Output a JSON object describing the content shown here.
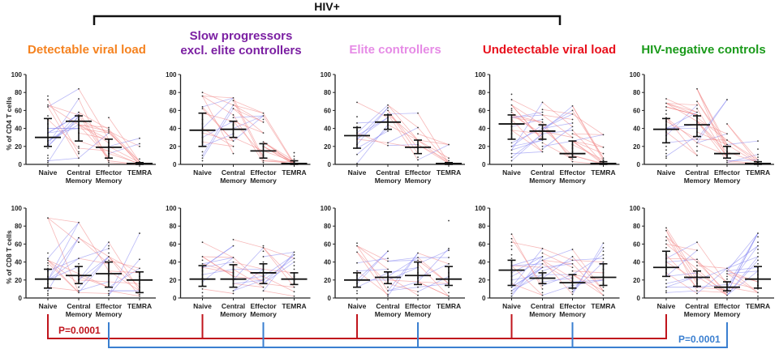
{
  "figure": {
    "bracket_label": "HIV+",
    "group_titles": [
      {
        "lines": [
          "Detectable viral load"
        ],
        "color": "#f5821f"
      },
      {
        "lines": [
          "Slow progressors",
          "excl. elite controllers"
        ],
        "color": "#7b1fa2"
      },
      {
        "lines": [
          "Elite controllers"
        ],
        "color": "#e68be6"
      },
      {
        "lines": [
          "Undetectable viral load"
        ],
        "color": "#e8101c"
      },
      {
        "lines": [
          "HIV-negative controls"
        ],
        "color": "#1a9a1a"
      }
    ],
    "comparisons": [
      {
        "label": "P=0.0001",
        "color": "#c0141c",
        "connects": "Naive across all groups"
      },
      {
        "label": "P=0.0001",
        "color": "#3a7fd0",
        "connects": "Effector Memory across all groups"
      }
    ],
    "line_colors": {
      "decrease": "#f08080",
      "increase": "#8080f0",
      "summary": "#111111",
      "dots": "#333333"
    }
  },
  "chart_data": {
    "type": "scatter",
    "categories": [
      "Naive",
      "Central Memory",
      "Effector Memory",
      "TEMRA"
    ],
    "category_lines": [
      [
        "Naive"
      ],
      [
        "Central",
        "Memory"
      ],
      [
        "Effector",
        "Memory"
      ],
      [
        "TEMRA"
      ]
    ],
    "ylim": [
      0,
      100
    ],
    "yticks": [
      0,
      20,
      40,
      60,
      80,
      100
    ],
    "rows": [
      {
        "ylabel": "% of CD4 T cells",
        "panels": [
          {
            "group": "Detectable viral load",
            "median": [
              30,
              48,
              19,
              1
            ],
            "q1": [
              20,
              26,
              7,
              0
            ],
            "q3": [
              51,
              54,
              28,
              2
            ],
            "points": [
              [
                76,
                72,
                66,
                64,
                54,
                50,
                45,
                40,
                35,
                30,
                26,
                22,
                20,
                18,
                10,
                7,
                4,
                2
              ],
              [
                84,
                73,
                58,
                55,
                53,
                50,
                48,
                44,
                40,
                35,
                26,
                20,
                18,
                14,
                12,
                7
              ],
              [
                52,
                41,
                39,
                37,
                35,
                28,
                24,
                20,
                15,
                12,
                7,
                4,
                2
              ],
              [
                29,
                23,
                20,
                6,
                3,
                2,
                1,
                1,
                0,
                0,
                0,
                0
              ]
            ]
          },
          {
            "group": "Slow progressors excl. elite controllers",
            "median": [
              38,
              39,
              15,
              1
            ],
            "q1": [
              20,
              30,
              7,
              0
            ],
            "q3": [
              57,
              48,
              23,
              4
            ],
            "points": [
              [
                80,
                76,
                64,
                62,
                57,
                50,
                45,
                40,
                35,
                30,
                25,
                20,
                14,
                10,
                7,
                4
              ],
              [
                74,
                71,
                66,
                62,
                55,
                52,
                48,
                44,
                40,
                34,
                30,
                26,
                20,
                12
              ],
              [
                57,
                54,
                50,
                47,
                35,
                25,
                20,
                15,
                10,
                7,
                4,
                2
              ],
              [
                13,
                9,
                6,
                4,
                3,
                2,
                1,
                1,
                0,
                0
              ]
            ]
          },
          {
            "group": "Elite controllers",
            "median": [
              32,
              47,
              19,
              1
            ],
            "q1": [
              18,
              39,
              12,
              0
            ],
            "q3": [
              41,
              55,
              27,
              2
            ],
            "points": [
              [
                69,
                53,
                46,
                42,
                38,
                35,
                32,
                28,
                22,
                18,
                11,
                1
              ],
              [
                66,
                63,
                60,
                56,
                52,
                48,
                44,
                40,
                37,
                24,
                21
              ],
              [
                57,
                41,
                34,
                27,
                22,
                18,
                12,
                8,
                5
              ],
              [
                22,
                7,
                4,
                2,
                1,
                1,
                0,
                0
              ]
            ]
          },
          {
            "group": "Undetectable viral load",
            "median": [
              45,
              37,
              12,
              1
            ],
            "q1": [
              28,
              28,
              8,
              0
            ],
            "q3": [
              55,
              44,
              26,
              3
            ],
            "points": [
              [
                78,
                72,
                66,
                62,
                60,
                58,
                55,
                52,
                50,
                48,
                45,
                42,
                38,
                34,
                30,
                28,
                24,
                20,
                16,
                12,
                8,
                4
              ],
              [
                69,
                61,
                58,
                55,
                50,
                47,
                44,
                40,
                37,
                34,
                30,
                27,
                24,
                20,
                17,
                14
              ],
              [
                65,
                60,
                56,
                50,
                46,
                42,
                38,
                34,
                30,
                26,
                22,
                18,
                14,
                10,
                6,
                3
              ],
              [
                33,
                19,
                12,
                7,
                5,
                4,
                3,
                2,
                1,
                1,
                0,
                0
              ]
            ]
          },
          {
            "group": "HIV-negative controls",
            "median": [
              39,
              44,
              12,
              1
            ],
            "q1": [
              24,
              31,
              7,
              0
            ],
            "q3": [
              51,
              54,
              20,
              3
            ],
            "points": [
              [
                73,
                68,
                64,
                60,
                56,
                52,
                48,
                44,
                40,
                36,
                32,
                28,
                24,
                20,
                16,
                12,
                9,
                7
              ],
              [
                84,
                70,
                66,
                62,
                58,
                55,
                52,
                48,
                44,
                40,
                36,
                32,
                28,
                24,
                20,
                15,
                10
              ],
              [
                72,
                45,
                34,
                27,
                22,
                18,
                14,
                10,
                7,
                4,
                2
              ],
              [
                26,
                17,
                11,
                8,
                5,
                3,
                2,
                1,
                1,
                0,
                0
              ]
            ]
          }
        ]
      },
      {
        "ylabel": "% of CD8 T cells",
        "panels": [
          {
            "group": "Detectable viral load",
            "median": [
              21,
              25,
              27,
              20
            ],
            "q1": [
              11,
              16,
              12,
              6
            ],
            "q3": [
              32,
              35,
              40,
              29
            ],
            "points": [
              [
                89,
                50,
                44,
                42,
                39,
                36,
                33,
                30,
                24,
                20,
                16,
                12,
                8,
                5,
                3
              ],
              [
                84,
                67,
                62,
                44,
                38,
                35,
                30,
                27,
                24,
                20,
                16,
                12,
                8,
                6
              ],
              [
                62,
                58,
                55,
                50,
                46,
                42,
                38,
                30,
                25,
                18,
                12,
                8,
                5,
                3
              ],
              [
                72,
                43,
                33,
                28,
                24,
                20,
                16,
                12,
                8,
                4,
                2
              ]
            ]
          },
          {
            "group": "Slow progressors excl. elite controllers",
            "median": [
              21,
              21,
              28,
              21
            ],
            "q1": [
              13,
              12,
              16,
              15
            ],
            "q3": [
              36,
              37,
              38,
              28
            ],
            "points": [
              [
                62,
                46,
                42,
                38,
                34,
                30,
                26,
                22,
                18,
                14,
                10,
                6,
                2
              ],
              [
                65,
                58,
                45,
                40,
                36,
                32,
                28,
                24,
                20,
                16,
                12,
                8,
                5
              ],
              [
                58,
                56,
                52,
                46,
                40,
                36,
                32,
                28,
                24,
                20,
                16,
                12,
                8
              ],
              [
                51,
                48,
                44,
                40,
                36,
                32,
                28,
                24,
                20,
                16,
                12,
                7,
                2
              ]
            ]
          },
          {
            "group": "Elite controllers",
            "median": [
              20,
              23,
              25,
              21
            ],
            "q1": [
              12,
              16,
              15,
              14
            ],
            "q3": [
              28,
              29,
              40,
              35
            ],
            "points": [
              [
                61,
                58,
                51,
                39,
                30,
                25,
                20,
                16,
                12,
                8,
                5
              ],
              [
                52,
                44,
                41,
                32,
                28,
                24,
                20,
                16,
                12,
                8,
                4,
                2
              ],
              [
                50,
                45,
                42,
                38,
                34,
                28,
                22,
                18,
                12,
                7,
                3
              ],
              [
                86,
                55,
                53,
                45,
                38,
                34,
                28,
                24,
                20,
                16,
                12,
                6,
                2
              ]
            ]
          },
          {
            "group": "Undetectable viral load",
            "median": [
              31,
              22,
              17,
              23
            ],
            "q1": [
              14,
              16,
              11,
              14
            ],
            "q3": [
              42,
              28,
              26,
              38
            ],
            "points": [
              [
                71,
                66,
                62,
                58,
                54,
                48,
                44,
                40,
                36,
                32,
                28,
                24,
                20,
                16,
                12,
                8,
                5,
                2
              ],
              [
                55,
                50,
                46,
                42,
                38,
                34,
                30,
                26,
                22,
                18,
                14,
                10,
                6,
                3
              ],
              [
                54,
                46,
                42,
                38,
                34,
                30,
                26,
                22,
                18,
                14,
                10,
                7,
                4
              ],
              [
                61,
                56,
                52,
                48,
                44,
                40,
                36,
                32,
                28,
                24,
                20,
                16,
                12,
                8,
                3
              ]
            ]
          },
          {
            "group": "HIV-negative controls",
            "median": [
              34,
              23,
              12,
              21
            ],
            "q1": [
              24,
              13,
              8,
              11
            ],
            "q3": [
              52,
              30,
              18,
              35
            ],
            "points": [
              [
                78,
                75,
                68,
                64,
                60,
                56,
                52,
                48,
                44,
                40,
                36,
                32,
                28,
                24,
                20,
                16,
                12,
                8,
                6
              ],
              [
                62,
                53,
                43,
                40,
                36,
                32,
                28,
                24,
                20,
                16,
                12,
                8,
                5
              ],
              [
                33,
                30,
                27,
                24,
                21,
                18,
                15,
                12,
                9,
                6,
                3
              ],
              [
                72,
                68,
                62,
                58,
                54,
                50,
                46,
                42,
                38,
                34,
                30,
                26,
                22,
                18,
                14,
                10,
                6,
                2
              ]
            ]
          }
        ]
      }
    ]
  }
}
